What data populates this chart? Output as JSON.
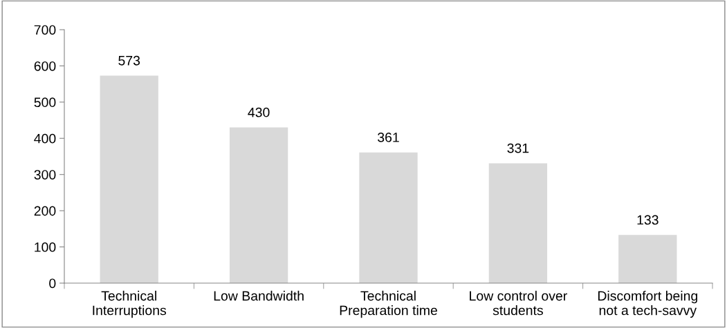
{
  "chart_data": {
    "type": "bar",
    "categories": [
      "Technical Interruptions",
      "Low Bandwidth",
      "Technical Preparation time",
      "Low control over students",
      "Discomfort being not a tech-savvy"
    ],
    "values": [
      573,
      430,
      361,
      331,
      133
    ],
    "color": "#d9d9d9",
    "ylim": [
      0,
      700
    ],
    "yticks": [
      0,
      100,
      200,
      300,
      400,
      500,
      600,
      700
    ],
    "data_labels": true,
    "grid": false,
    "legend": false
  }
}
